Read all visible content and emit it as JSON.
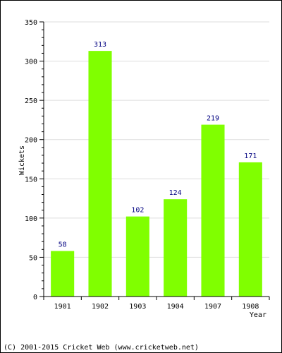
{
  "chart_data": {
    "type": "bar",
    "categories": [
      "1901",
      "1902",
      "1903",
      "1904",
      "1907",
      "1908"
    ],
    "values": [
      58,
      313,
      102,
      124,
      219,
      171
    ],
    "title": "",
    "xlabel": "Year",
    "ylabel": "Wickets",
    "ylim": [
      0,
      350
    ],
    "yticks": [
      0,
      50,
      100,
      150,
      200,
      250,
      300,
      350
    ],
    "y_minor_step": 10,
    "grid": true,
    "legend": "none",
    "data_labels": true
  },
  "colors": {
    "bar": "#80ff00",
    "label": "#000080",
    "grid": "#dddddd",
    "axis": "#000000"
  },
  "footer": "(C) 2001-2015 Cricket Web (www.cricketweb.net)"
}
